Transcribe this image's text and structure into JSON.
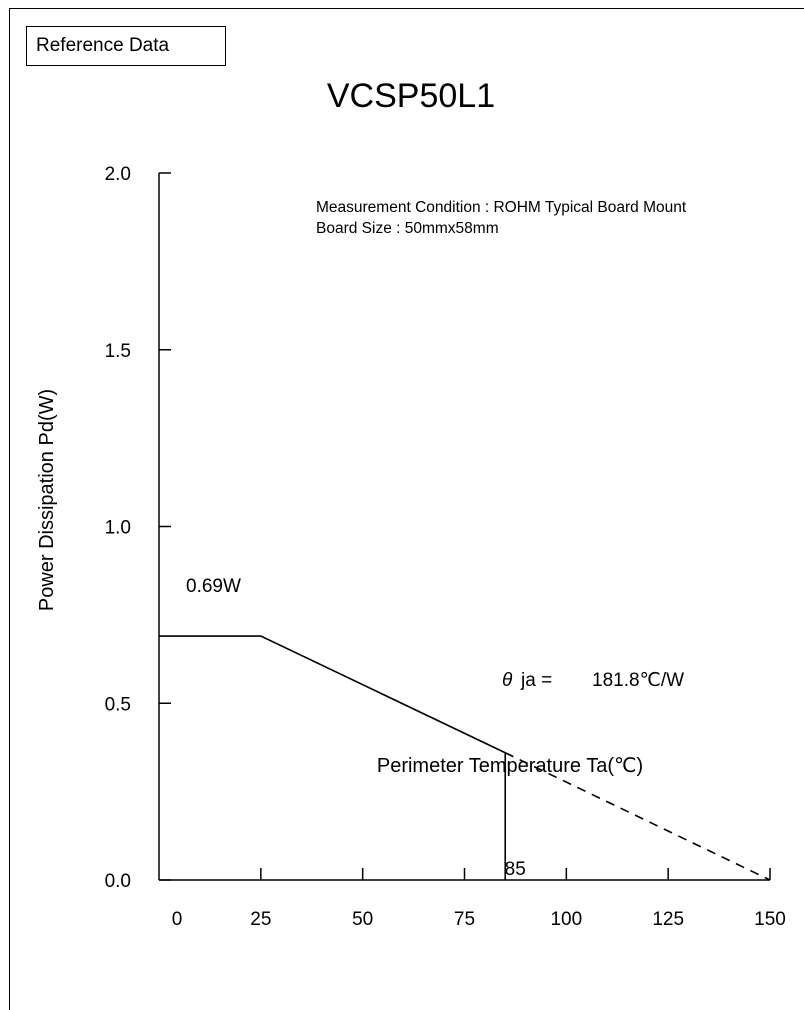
{
  "reference_label": "Reference Data",
  "chart_data": {
    "type": "line",
    "title": "VCSP50L1",
    "xlabel": "Perimeter Temperature Ta(℃)",
    "ylabel": "Power Dissipation Pd(W)",
    "xlim": [
      0,
      150
    ],
    "ylim": [
      0,
      2.0
    ],
    "x_ticks": [
      0,
      25,
      50,
      75,
      100,
      125,
      150
    ],
    "y_ticks": [
      0.0,
      0.5,
      1.0,
      1.5,
      2.0
    ],
    "x_tick_labels": [
      "0",
      "25",
      "50",
      "75",
      "100",
      "125",
      "150"
    ],
    "y_tick_labels": [
      "0.0",
      "0.5",
      "1.0",
      "1.5",
      "2.0"
    ],
    "grid": false,
    "series": [
      {
        "style": "solid",
        "x": [
          0,
          25,
          85
        ],
        "y": [
          0.69,
          0.69,
          0.36
        ]
      },
      {
        "style": "dashed",
        "x": [
          85,
          150
        ],
        "y": [
          0.36,
          0
        ]
      }
    ],
    "marker_line": {
      "x": 85,
      "label": "85"
    },
    "annotations": {
      "measurement_condition": "Measurement Condition : ROHM Typical Board Mount",
      "board_size": "Board Size : 50mmx58mm",
      "pd_label": "0.69W",
      "theta_symbol": "θ",
      "theta_label": "ja =",
      "theta_value": "181.8℃/W"
    }
  }
}
